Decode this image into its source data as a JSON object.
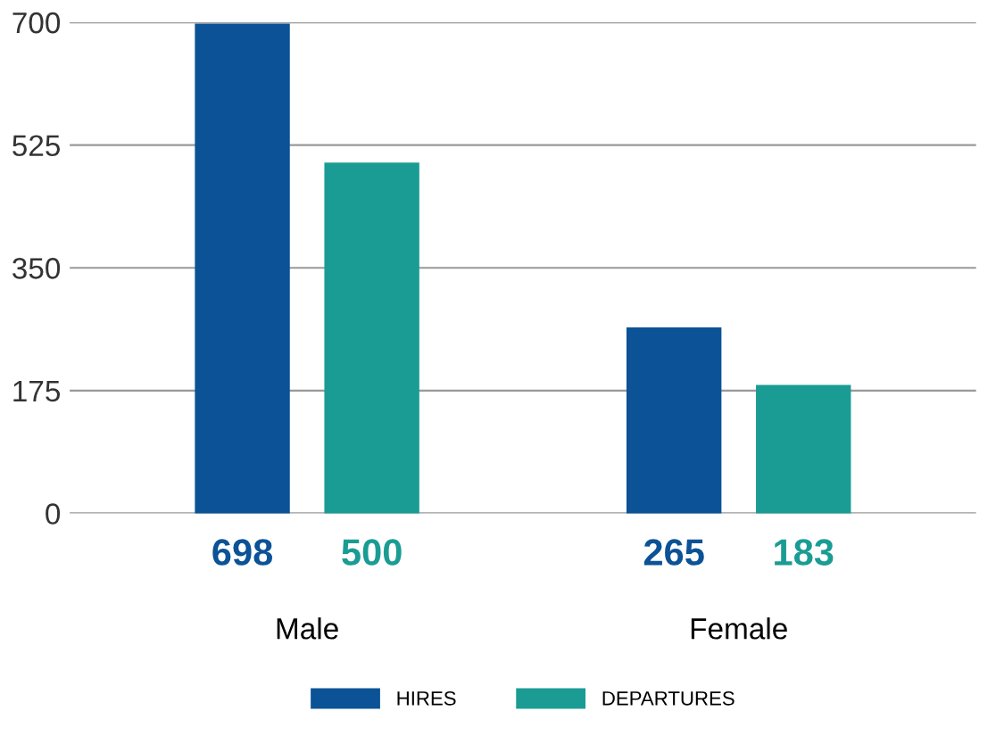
{
  "chart_data": {
    "type": "bar",
    "categories": [
      "Male",
      "Female"
    ],
    "series": [
      {
        "name": "HIRES",
        "color": "#0b5296",
        "values": [
          698,
          265
        ]
      },
      {
        "name": "DEPARTURES",
        "color": "#1a9c94",
        "values": [
          500,
          183
        ]
      }
    ],
    "ylim": [
      0,
      700
    ],
    "yticks": [
      0,
      175,
      350,
      525,
      700
    ],
    "grid": "y",
    "legend": "bottom",
    "data_labels": true
  }
}
